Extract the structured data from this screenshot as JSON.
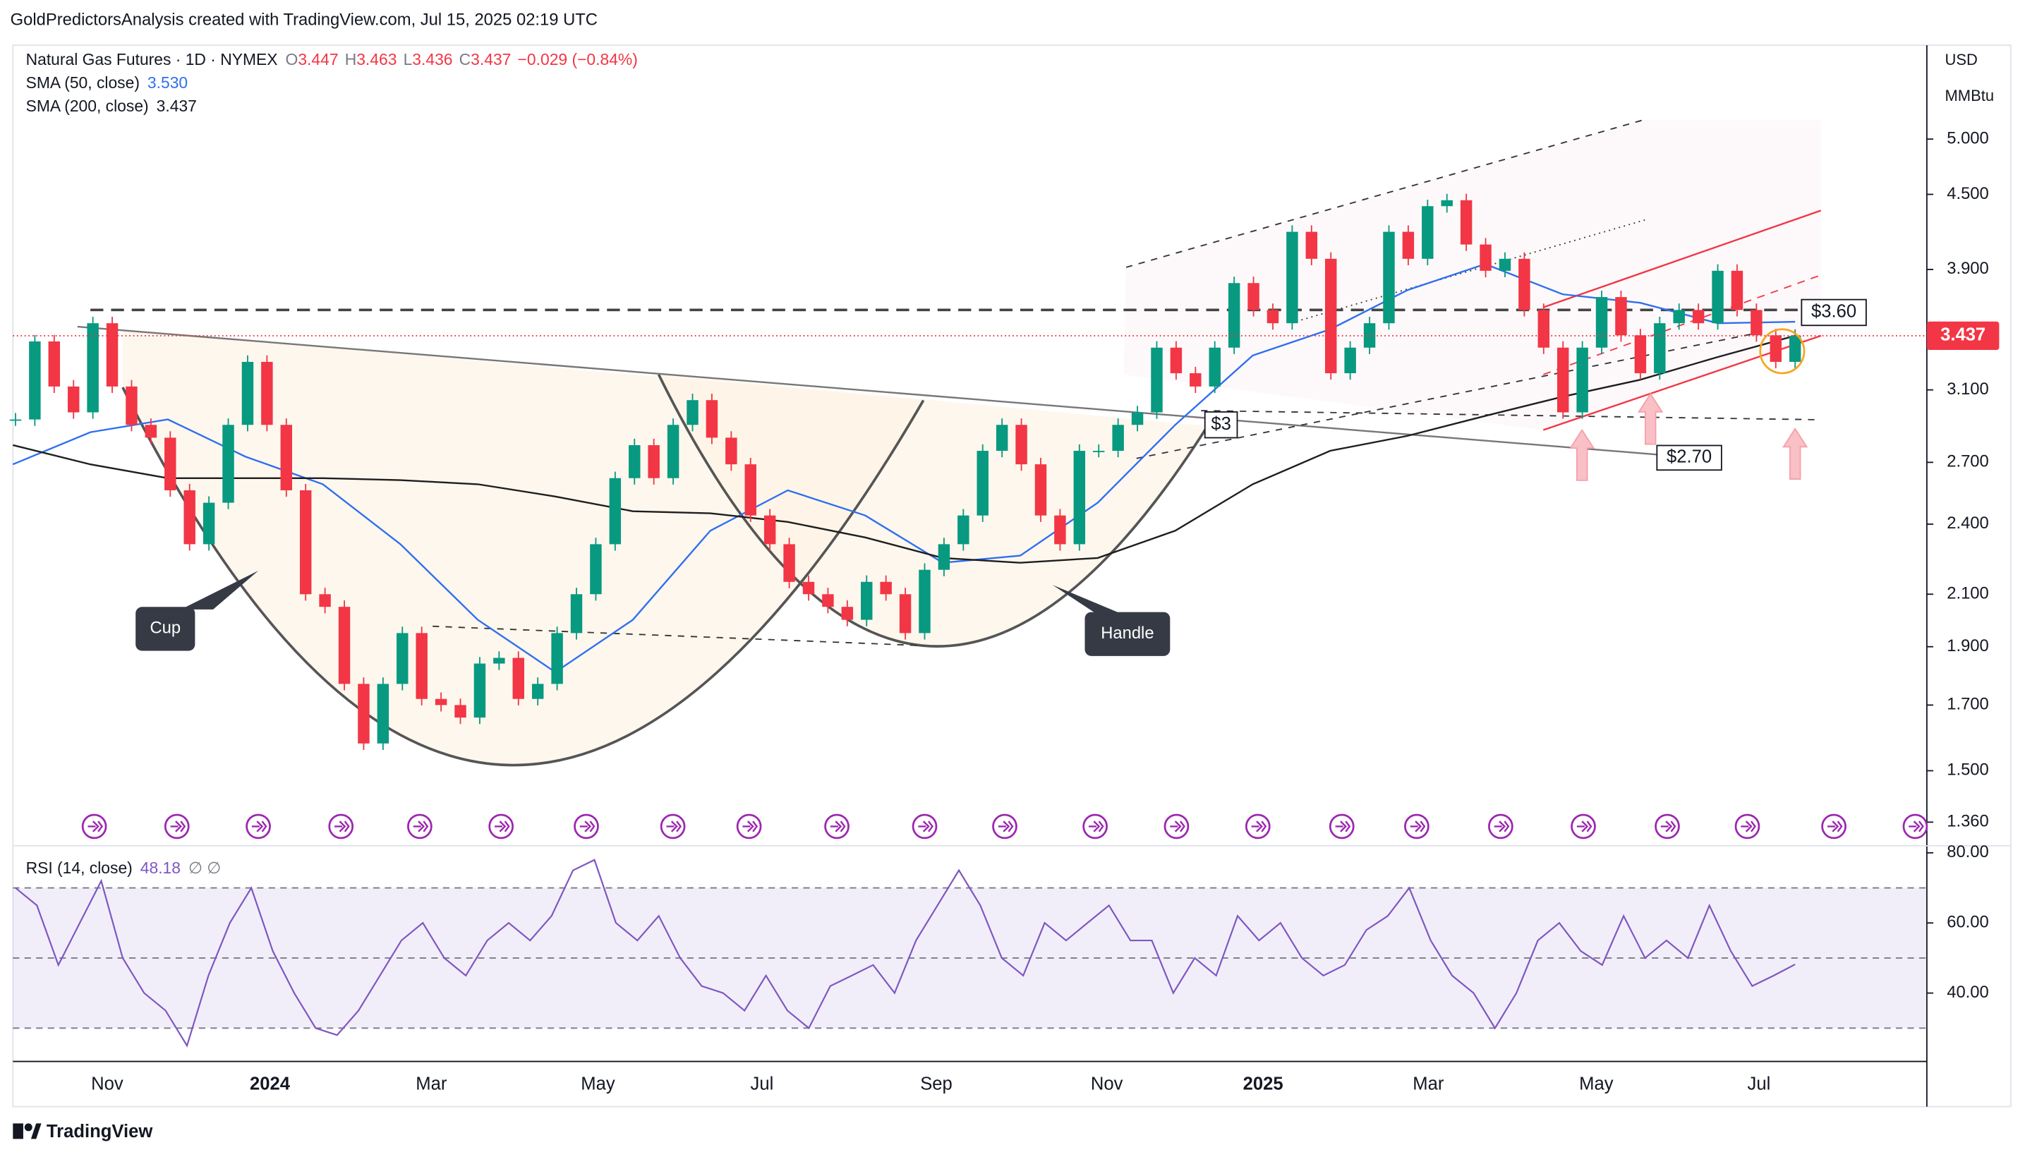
{
  "header": {
    "attribution": "GoldPredictorsAnalysis created with TradingView.com, Jul 15, 2025 02:19 UTC",
    "symbol": "Natural Gas Futures · 1D · NYMEX",
    "quote": [
      {
        "key": "O",
        "value": "3.447"
      },
      {
        "key": "H",
        "value": "3.463"
      },
      {
        "key": "L",
        "value": "3.436"
      },
      {
        "key": "C",
        "value": "3.437"
      }
    ],
    "change": "−0.029 (−0.84%)",
    "currency": "USD",
    "unit": "MMBtu"
  },
  "annotations": {
    "resistance": "$3.60",
    "neck": "$3",
    "support": "$2.70",
    "cup": "Cup",
    "handle": "Handle"
  },
  "footer": "TradingView",
  "chart_data": [
    {
      "type": "candlestick",
      "close": [
        2.93,
        3.4,
        3.12,
        2.97,
        3.52,
        3.12,
        2.9,
        2.83,
        2.56,
        2.31,
        2.5,
        2.9,
        3.27,
        2.9,
        2.56,
        2.1,
        2.05,
        1.77,
        1.58,
        1.77,
        1.95,
        1.72,
        1.7,
        1.66,
        1.84,
        1.86,
        1.72,
        1.77,
        1.95,
        2.1,
        2.31,
        2.62,
        2.79,
        2.62,
        2.9,
        3.04,
        2.83,
        2.69,
        2.44,
        2.31,
        2.15,
        2.1,
        2.05,
        2.0,
        2.15,
        2.1,
        1.95,
        2.2,
        2.31,
        2.44,
        2.76,
        2.9,
        2.69,
        2.44,
        2.31,
        2.76,
        2.76,
        2.9,
        2.97,
        3.36,
        3.2,
        3.12,
        3.36,
        3.8,
        3.61,
        3.52,
        4.19,
        3.98,
        3.2,
        3.36,
        3.52,
        4.19,
        3.98,
        4.4,
        4.45,
        4.09,
        3.89,
        3.98,
        3.61,
        3.36,
        2.97,
        3.36,
        3.7,
        3.44,
        3.2,
        3.52,
        3.61,
        3.52,
        3.89,
        3.61,
        3.44,
        3.27,
        3.437
      ],
      "up_color": "#089981",
      "down_color": "#f23645",
      "log_scale": true,
      "grid": false,
      "ylim": [
        1.3,
        5.98
      ],
      "yticks": [
        {
          "value": 5,
          "label": "5.000"
        },
        {
          "value": 4.5,
          "label": "4.500"
        },
        {
          "value": 3.9,
          "label": "3.900"
        },
        {
          "value": 3.1,
          "label": "3.100"
        },
        {
          "value": 2.7,
          "label": "2.700"
        },
        {
          "value": 2.4,
          "label": "2.400"
        },
        {
          "value": 2.1,
          "label": "2.100"
        },
        {
          "value": 1.9,
          "label": "1.900"
        },
        {
          "value": 1.7,
          "label": "1.700"
        },
        {
          "value": 1.5,
          "label": "1.500"
        },
        {
          "value": 1.36,
          "label": "1.360"
        }
      ],
      "x_axis_labels": [
        "Nov",
        "2024",
        "Mar",
        "May",
        "Jul",
        "Sep",
        "Nov",
        "2025",
        "Mar",
        "May",
        "Jul"
      ],
      "last_price_color": "#f23645",
      "series": [
        {
          "name": "SMA (50, close)",
          "color": "#2f6ff0",
          "values": [
            2.69,
            2.86,
            2.93,
            2.73,
            2.59,
            2.31,
            2.0,
            1.81,
            2.0,
            2.37,
            2.56,
            2.44,
            2.23,
            2.26,
            2.5,
            2.9,
            3.31,
            3.48,
            3.75,
            3.94,
            3.72,
            3.66,
            3.52,
            3.53
          ],
          "value_label": "3.530"
        },
        {
          "name": "SMA (200, close)",
          "color": "#1e1e1e",
          "values": [
            2.79,
            2.69,
            2.62,
            2.62,
            2.62,
            2.61,
            2.59,
            2.53,
            2.46,
            2.45,
            2.41,
            2.34,
            2.25,
            2.23,
            2.25,
            2.37,
            2.59,
            2.76,
            2.84,
            2.95,
            3.06,
            3.16,
            3.3,
            3.437
          ],
          "value_label": "3.437"
        }
      ]
    },
    {
      "type": "line",
      "name": "RSI (14, close)",
      "color": "#7e57c2",
      "values": [
        70,
        65,
        48,
        60,
        72,
        50,
        40,
        35,
        25,
        45,
        60,
        70,
        52,
        40,
        30,
        28,
        35,
        45,
        55,
        60,
        50,
        45,
        55,
        60,
        55,
        62,
        75,
        78,
        60,
        55,
        62,
        50,
        42,
        40,
        35,
        45,
        35,
        30,
        42,
        45,
        48,
        40,
        55,
        65,
        75,
        65,
        50,
        45,
        60,
        55,
        60,
        65,
        55,
        55,
        40,
        50,
        45,
        62,
        55,
        60,
        50,
        45,
        48,
        58,
        62,
        70,
        55,
        45,
        40,
        30,
        40,
        55,
        60,
        52,
        48,
        62,
        50,
        55,
        50,
        65,
        52,
        42,
        45,
        48.18
      ],
      "value_label": "48.18",
      "extra": "∅ ∅",
      "bands": [
        70,
        50,
        30
      ],
      "ylim": [
        20.5,
        82
      ],
      "yticks": [
        {
          "value": 80,
          "label": "80.00"
        },
        {
          "value": 60,
          "label": "60.00"
        },
        {
          "value": 40,
          "label": "40.00"
        }
      ]
    }
  ]
}
